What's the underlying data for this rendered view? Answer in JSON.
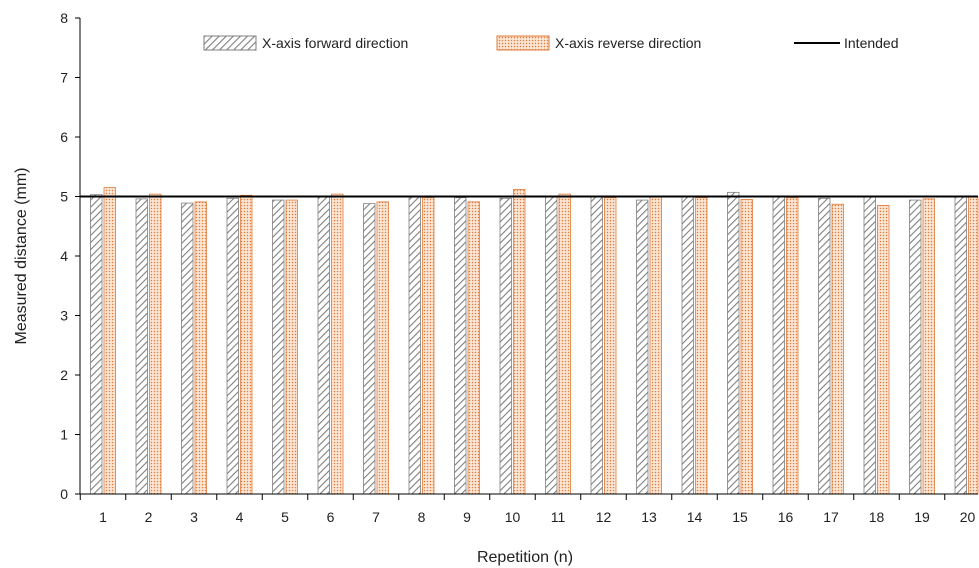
{
  "chart_data": {
    "type": "bar",
    "xlabel": "Repetition (n)",
    "ylabel": "Measured distance (mm)",
    "ylim": [
      0,
      8
    ],
    "yticks": [
      "0",
      "1",
      "2",
      "3",
      "4",
      "5",
      "6",
      "7",
      "8"
    ],
    "categories": [
      "1",
      "2",
      "3",
      "4",
      "5",
      "6",
      "7",
      "8",
      "9",
      "10",
      "11",
      "12",
      "13",
      "14",
      "15",
      "16",
      "17",
      "18",
      "19",
      "20"
    ],
    "series": [
      {
        "name": "X-axis forward direction",
        "pattern": "diagonal-hatch",
        "color": "#7f7f7f",
        "values": [
          5.03,
          4.96,
          4.89,
          4.97,
          4.94,
          5.01,
          4.88,
          5.0,
          4.98,
          4.97,
          5.0,
          4.99,
          4.94,
          4.99,
          5.07,
          5.0,
          4.97,
          4.99,
          4.94,
          4.99
        ]
      },
      {
        "name": "X-axis reverse direction",
        "pattern": "dotted",
        "color": "#e07b39",
        "values": [
          5.15,
          5.04,
          4.91,
          5.02,
          4.94,
          5.04,
          4.91,
          4.98,
          4.91,
          5.12,
          5.04,
          4.98,
          4.99,
          4.98,
          4.95,
          4.98,
          4.87,
          4.85,
          4.96,
          4.99
        ]
      }
    ],
    "reference_line": {
      "name": "Intended",
      "value": 5,
      "color": "#000000"
    },
    "legend_position": "top",
    "grid": false
  }
}
